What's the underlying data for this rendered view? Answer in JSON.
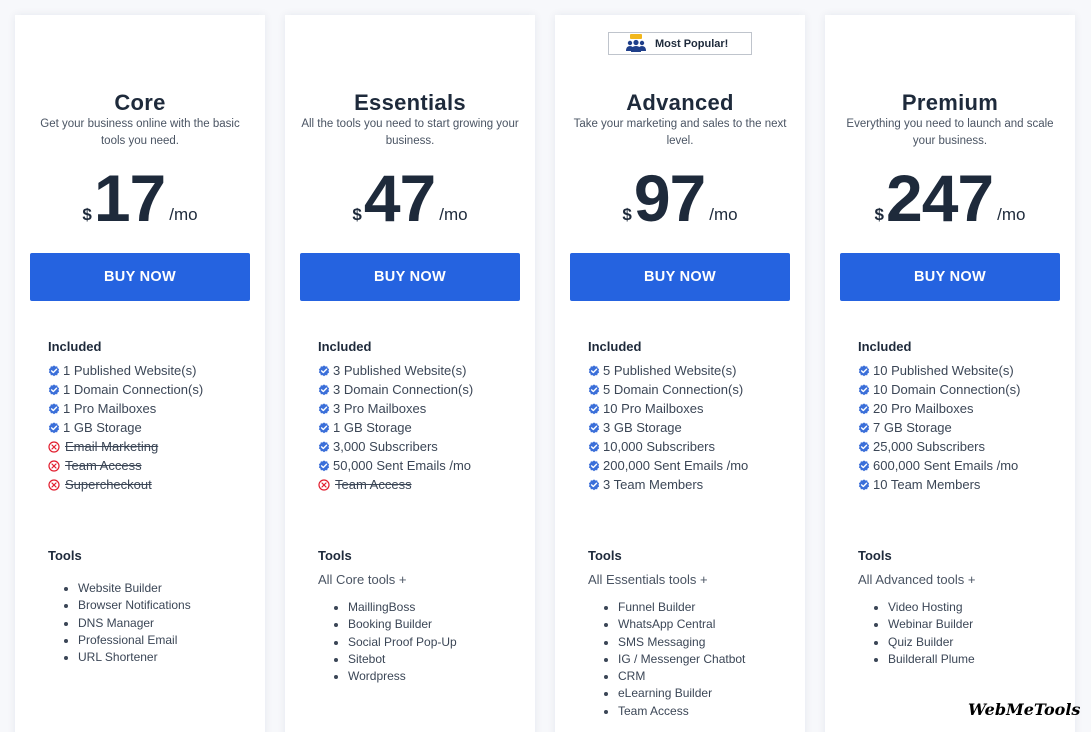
{
  "badge": {
    "label": "Most Popular!",
    "icon": "team-icon"
  },
  "icons": {
    "included": "check-badge-icon",
    "excluded": "x-circle-icon"
  },
  "colors": {
    "primary": "#2563e0",
    "heading": "#1e2a3b",
    "check": "#3b6fd9",
    "excluded": "#e11d2e"
  },
  "plans": [
    {
      "name": "Core",
      "description": "Get your business online with the basic tools you need.",
      "currency": "$",
      "price": "17",
      "period": "/mo",
      "button": "BUY NOW",
      "included_title": "Included",
      "features": [
        {
          "text": "1 Published Website(s)",
          "included": true
        },
        {
          "text": "1 Domain Connection(s)",
          "included": true
        },
        {
          "text": "1 Pro Mailboxes",
          "included": true
        },
        {
          "text": "1 GB Storage",
          "included": true
        },
        {
          "text": "Email Marketing",
          "included": false
        },
        {
          "text": "Team Access",
          "included": false
        },
        {
          "text": "Supercheckout",
          "included": false
        }
      ],
      "tools_title": "Tools",
      "tools_intro": "",
      "tools": [
        "Website Builder",
        "Browser Notifications",
        "DNS Manager",
        "Professional Email",
        "URL Shortener"
      ]
    },
    {
      "name": "Essentials",
      "description": "All the tools you need to start growing your business.",
      "currency": "$",
      "price": "47",
      "period": "/mo",
      "button": "BUY NOW",
      "included_title": "Included",
      "features": [
        {
          "text": "3 Published Website(s)",
          "included": true
        },
        {
          "text": "3 Domain Connection(s)",
          "included": true
        },
        {
          "text": "3 Pro Mailboxes",
          "included": true
        },
        {
          "text": "1 GB Storage",
          "included": true
        },
        {
          "text": "3,000 Subscribers",
          "included": true
        },
        {
          "text": "50,000 Sent Emails /mo",
          "included": true
        },
        {
          "text": "Team Access",
          "included": false
        }
      ],
      "tools_title": "Tools",
      "tools_intro": "All Core tools +",
      "tools": [
        "MaillingBoss",
        "Booking Builder",
        "Social Proof Pop-Up",
        "Sitebot",
        "Wordpress"
      ]
    },
    {
      "name": "Advanced",
      "description": "Take your marketing and sales to the next level.",
      "currency": "$",
      "price": "97",
      "period": "/mo",
      "button": "BUY NOW",
      "included_title": "Included",
      "features": [
        {
          "text": "5 Published Website(s)",
          "included": true
        },
        {
          "text": "5 Domain Connection(s)",
          "included": true
        },
        {
          "text": "10 Pro Mailboxes",
          "included": true
        },
        {
          "text": "3 GB Storage",
          "included": true
        },
        {
          "text": "10,000 Subscribers",
          "included": true
        },
        {
          "text": "200,000 Sent Emails /mo",
          "included": true
        },
        {
          "text": "3 Team Members",
          "included": true
        }
      ],
      "tools_title": "Tools",
      "tools_intro": "All Essentials tools +",
      "tools": [
        "Funnel Builder",
        "WhatsApp Central",
        "SMS Messaging",
        "IG / Messenger Chatbot",
        "CRM",
        "eLearning Builder",
        "Team Access"
      ]
    },
    {
      "name": "Premium",
      "description": "Everything you need to launch and scale your business.",
      "currency": "$",
      "price": "247",
      "period": "/mo",
      "button": "BUY NOW",
      "included_title": "Included",
      "features": [
        {
          "text": "10 Published Website(s)",
          "included": true
        },
        {
          "text": "10 Domain Connection(s)",
          "included": true
        },
        {
          "text": "20 Pro Mailboxes",
          "included": true
        },
        {
          "text": "7 GB Storage",
          "included": true
        },
        {
          "text": "25,000 Subscribers",
          "included": true
        },
        {
          "text": "600,000 Sent Emails /mo",
          "included": true
        },
        {
          "text": "10 Team Members",
          "included": true
        }
      ],
      "tools_title": "Tools",
      "tools_intro": "All Advanced tools +",
      "tools": [
        "Video Hosting",
        "Webinar Builder",
        "Quiz Builder",
        "Builderall Plume"
      ]
    }
  ],
  "watermark": "WebMeTools"
}
